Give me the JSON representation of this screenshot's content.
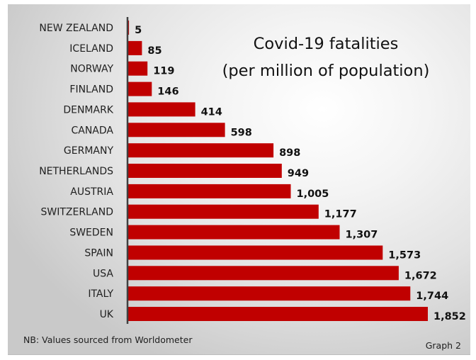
{
  "chart_data": {
    "type": "bar",
    "orientation": "horizontal",
    "title": [
      "Covid-19 fatalities",
      "(per million of population)"
    ],
    "categories": [
      "NEW ZEALAND",
      "ICELAND",
      "NORWAY",
      "FINLAND",
      "DENMARK",
      "CANADA",
      "GERMANY",
      "NETHERLANDS",
      "AUSTRIA",
      "SWITZERLAND",
      "SWEDEN",
      "SPAIN",
      "USA",
      "ITALY",
      "UK"
    ],
    "values": [
      5,
      85,
      119,
      146,
      414,
      598,
      898,
      949,
      1005,
      1177,
      1307,
      1573,
      1672,
      1744,
      1852
    ],
    "value_labels": [
      "5",
      "85",
      "119",
      "146",
      "414",
      "598",
      "898",
      "949",
      "1,005",
      "1,177",
      "1,307",
      "1,573",
      "1,672",
      "1,744",
      "1,852"
    ],
    "xlabel": "",
    "ylabel": "",
    "xlim": [
      0,
      1852
    ],
    "grid": false,
    "legend": "none",
    "bar_color": "#c00000",
    "axis_color": "#404040",
    "note": "NB: Values sourced from Worldometer",
    "graph_label": "Graph 2"
  }
}
